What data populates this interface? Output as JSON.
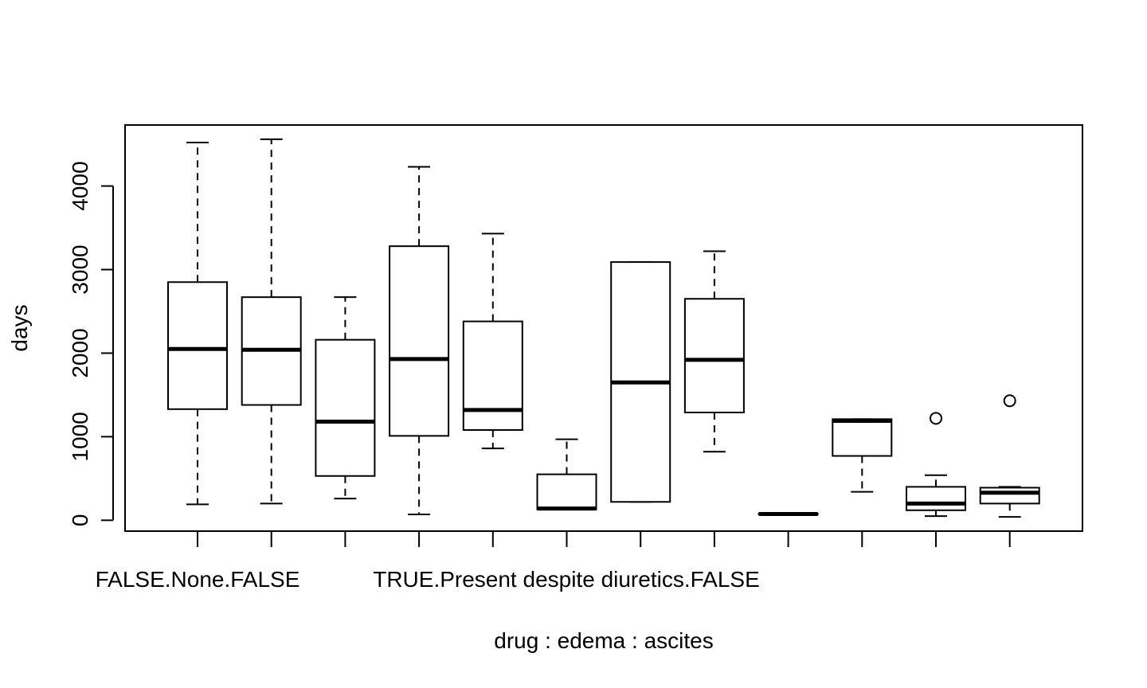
{
  "chart_data": {
    "type": "boxplot",
    "xlabel": "drug : edema : ascites",
    "ylabel": "days",
    "ylim": [
      -130,
      4730
    ],
    "yticks": [
      0,
      1000,
      2000,
      3000,
      4000
    ],
    "category_label_1": "FALSE.None.FALSE",
    "category_label_2": "TRUE.Present despite diuretics.FALSE",
    "boxes": [
      {
        "min": 190,
        "q1": 1330,
        "median": 2050,
        "q3": 2850,
        "max": 4520,
        "outliers": []
      },
      {
        "min": 200,
        "q1": 1380,
        "median": 2040,
        "q3": 2670,
        "max": 4560,
        "outliers": []
      },
      {
        "min": 260,
        "q1": 530,
        "median": 1180,
        "q3": 2160,
        "max": 2670,
        "outliers": []
      },
      {
        "min": 70,
        "q1": 1010,
        "median": 1930,
        "q3": 3280,
        "max": 4230,
        "outliers": []
      },
      {
        "min": 860,
        "q1": 1080,
        "median": 1320,
        "q3": 2380,
        "max": 3430,
        "outliers": []
      },
      {
        "min": 130,
        "q1": 130,
        "median": 140,
        "q3": 550,
        "max": 970,
        "outliers": []
      },
      {
        "min": 220,
        "q1": 220,
        "median": 1650,
        "q3": 3090,
        "max": 3090,
        "outliers": []
      },
      {
        "min": 820,
        "q1": 1290,
        "median": 1920,
        "q3": 2650,
        "max": 3220,
        "outliers": []
      },
      {
        "min": 70,
        "q1": 70,
        "median": 75,
        "q3": 80,
        "max": 80,
        "outliers": []
      },
      {
        "min": 340,
        "q1": 770,
        "median": 1190,
        "q3": 1210,
        "max": 1210,
        "outliers": []
      },
      {
        "min": 50,
        "q1": 120,
        "median": 200,
        "q3": 400,
        "max": 540,
        "outliers": [
          1220
        ]
      },
      {
        "min": 40,
        "q1": 200,
        "median": 330,
        "q3": 390,
        "max": 400,
        "outliers": [
          1430
        ]
      }
    ]
  }
}
